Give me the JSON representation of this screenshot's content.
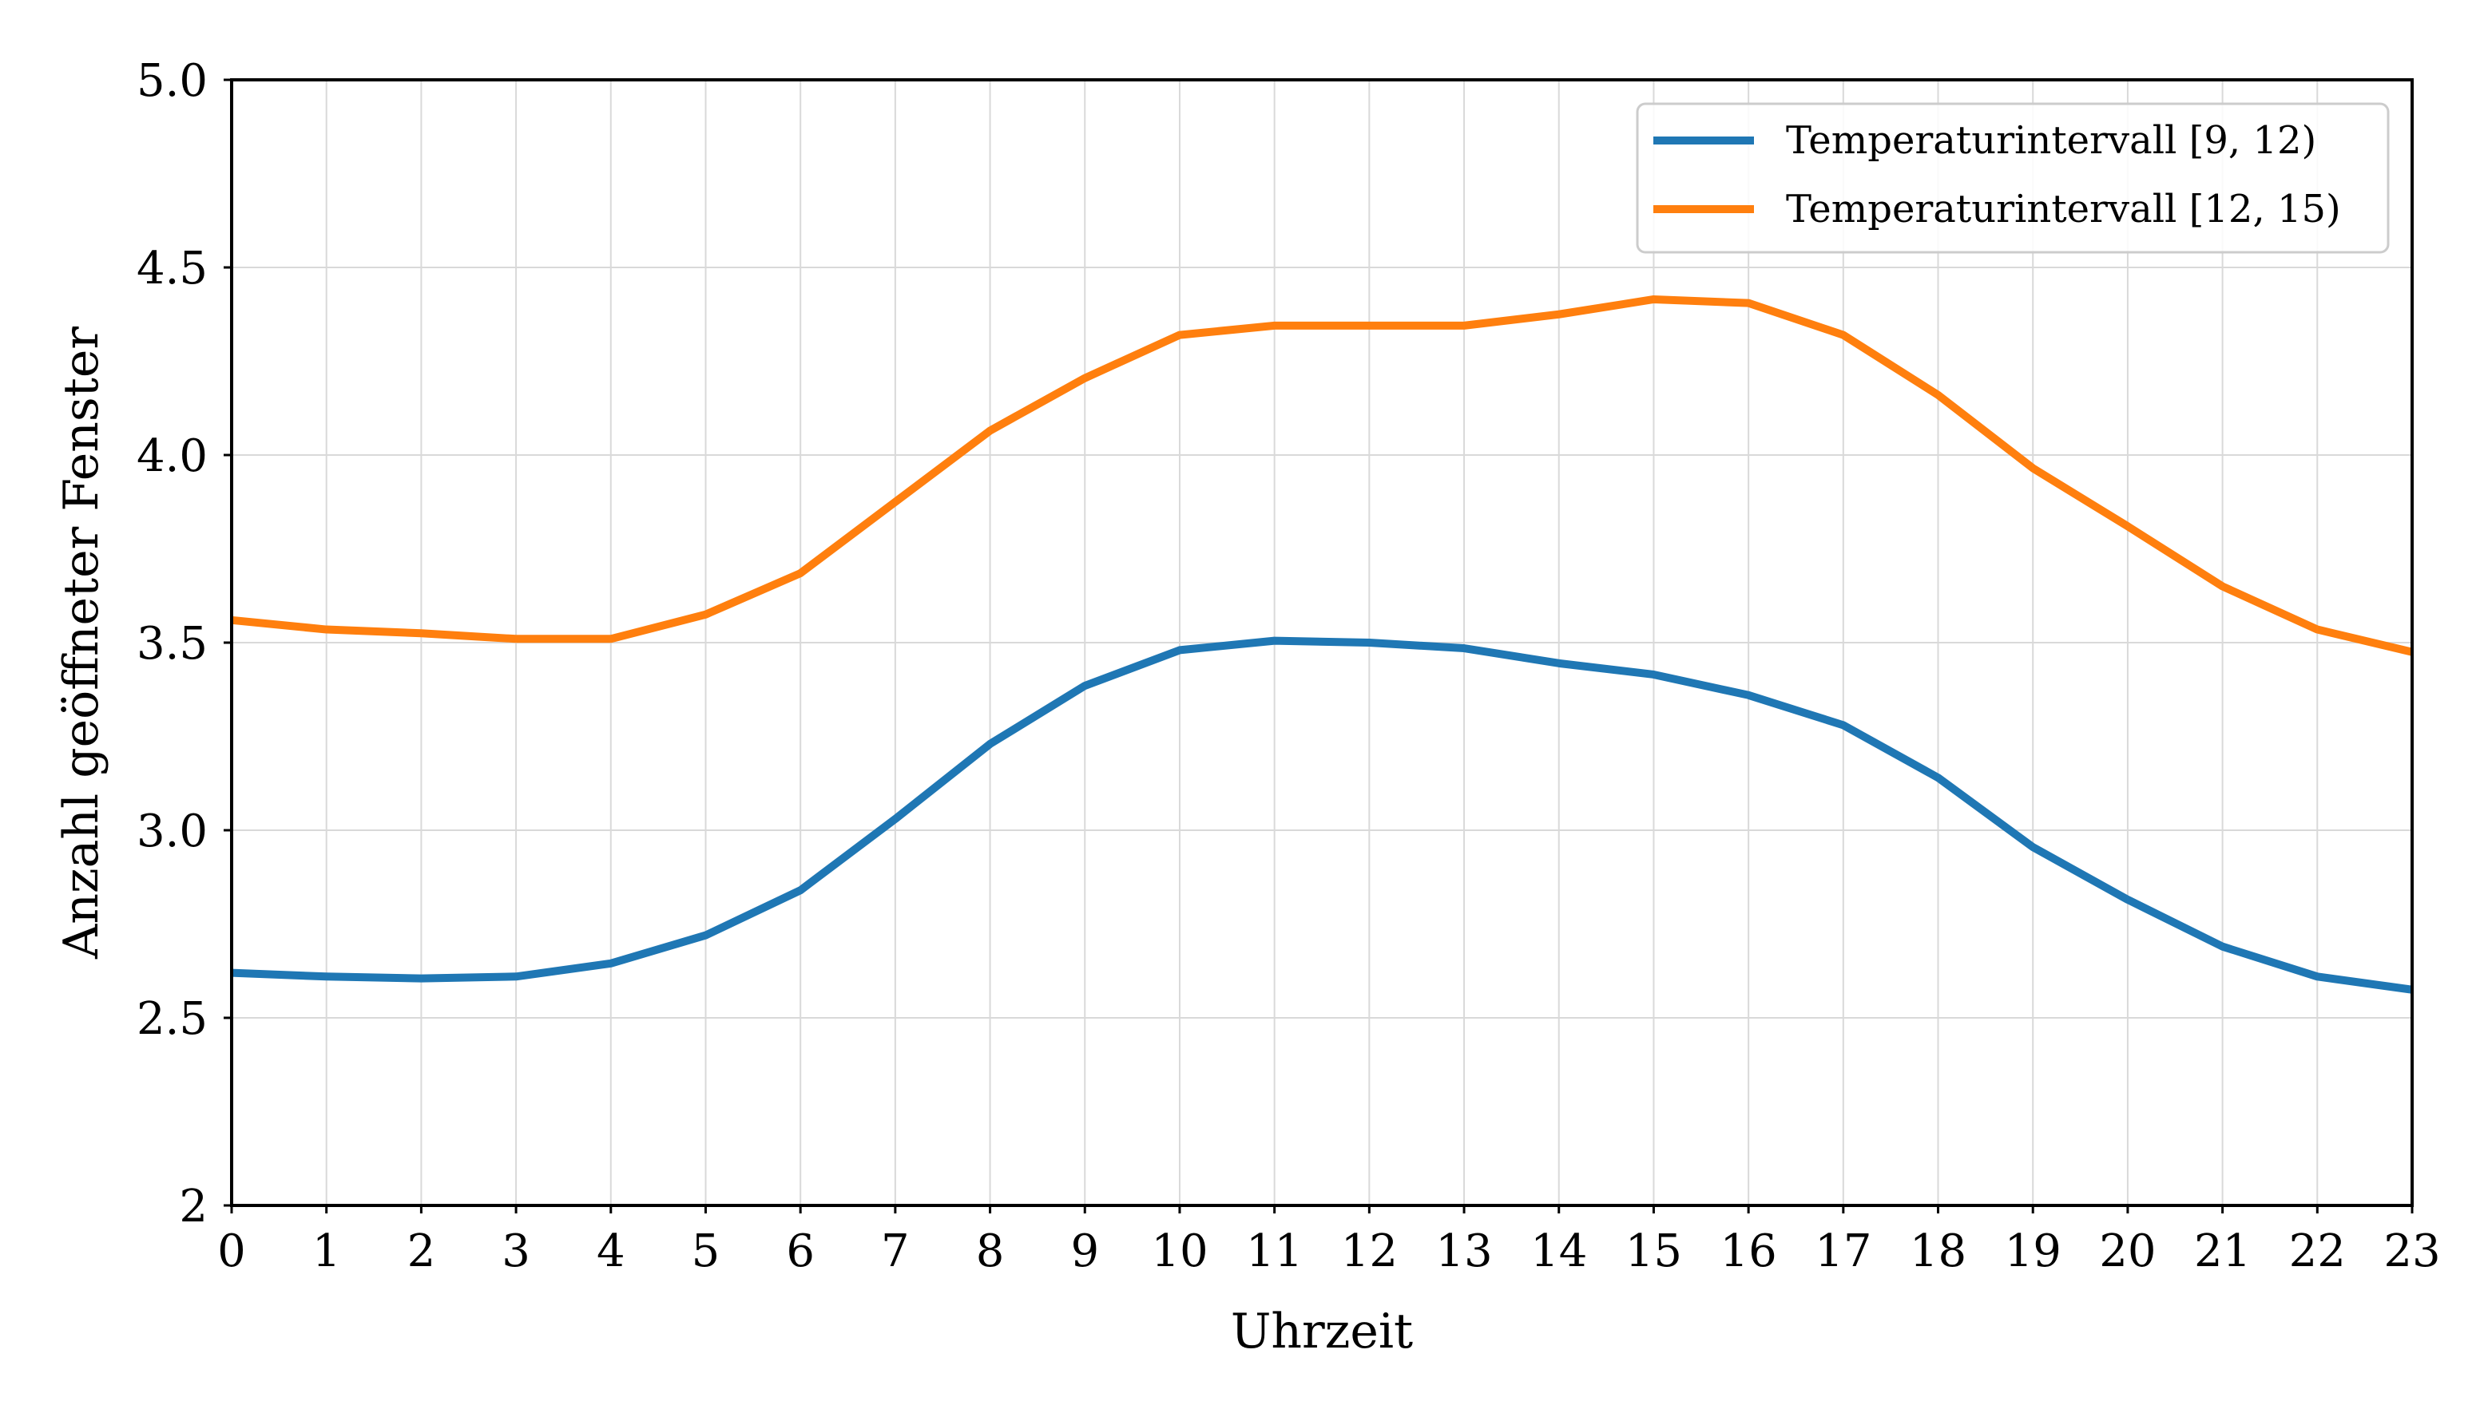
{
  "chart_data": {
    "type": "line",
    "xlabel": "Uhrzeit",
    "ylabel": "Anzahl geöffneter Fenster",
    "x": [
      0,
      1,
      2,
      3,
      4,
      5,
      6,
      7,
      8,
      9,
      10,
      11,
      12,
      13,
      14,
      15,
      16,
      17,
      18,
      19,
      20,
      21,
      22,
      23
    ],
    "xlim": [
      0,
      23
    ],
    "ylim": [
      2,
      5
    ],
    "yticks": [
      "2",
      "2.5",
      "3.0",
      "3.5",
      "4.0",
      "4.5",
      "5.0"
    ],
    "ytick_values": [
      2,
      2.5,
      3.0,
      3.5,
      4.0,
      4.5,
      5.0
    ],
    "grid": true,
    "legend_position": "top-right",
    "series": [
      {
        "name": "Temperaturintervall [9, 12)",
        "color": "#1f77b4",
        "values": [
          2.62,
          2.61,
          2.605,
          2.61,
          2.645,
          2.72,
          2.84,
          3.03,
          3.23,
          3.385,
          3.48,
          3.505,
          3.5,
          3.485,
          3.445,
          3.415,
          3.36,
          3.28,
          3.14,
          2.955,
          2.815,
          2.69,
          2.61,
          2.575
        ]
      },
      {
        "name": "Temperaturintervall [12, 15)",
        "color": "#ff7f0e",
        "values": [
          3.56,
          3.535,
          3.525,
          3.51,
          3.51,
          3.575,
          3.685,
          3.875,
          4.065,
          4.205,
          4.32,
          4.345,
          4.345,
          4.345,
          4.375,
          4.415,
          4.405,
          4.32,
          4.16,
          3.965,
          3.81,
          3.65,
          3.535,
          3.475
        ]
      }
    ]
  }
}
